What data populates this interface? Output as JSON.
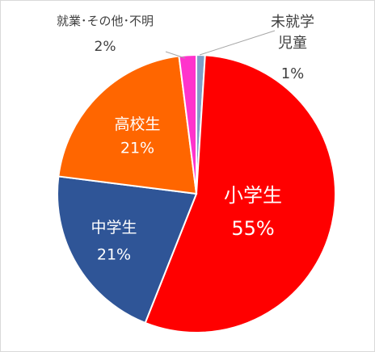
{
  "chart_data": {
    "type": "pie",
    "categories": [
      "未就学\n児童",
      "小学生",
      "中学生",
      "高校生",
      "就業･その他･不明"
    ],
    "values": [
      1,
      55,
      21,
      21,
      2
    ],
    "value_labels": [
      "1%",
      "55%",
      "21%",
      "21%",
      "2%"
    ],
    "colors": [
      "#7f9fc8",
      "#ff0000",
      "#2f5597",
      "#ff6600",
      "#ff33cc"
    ]
  }
}
